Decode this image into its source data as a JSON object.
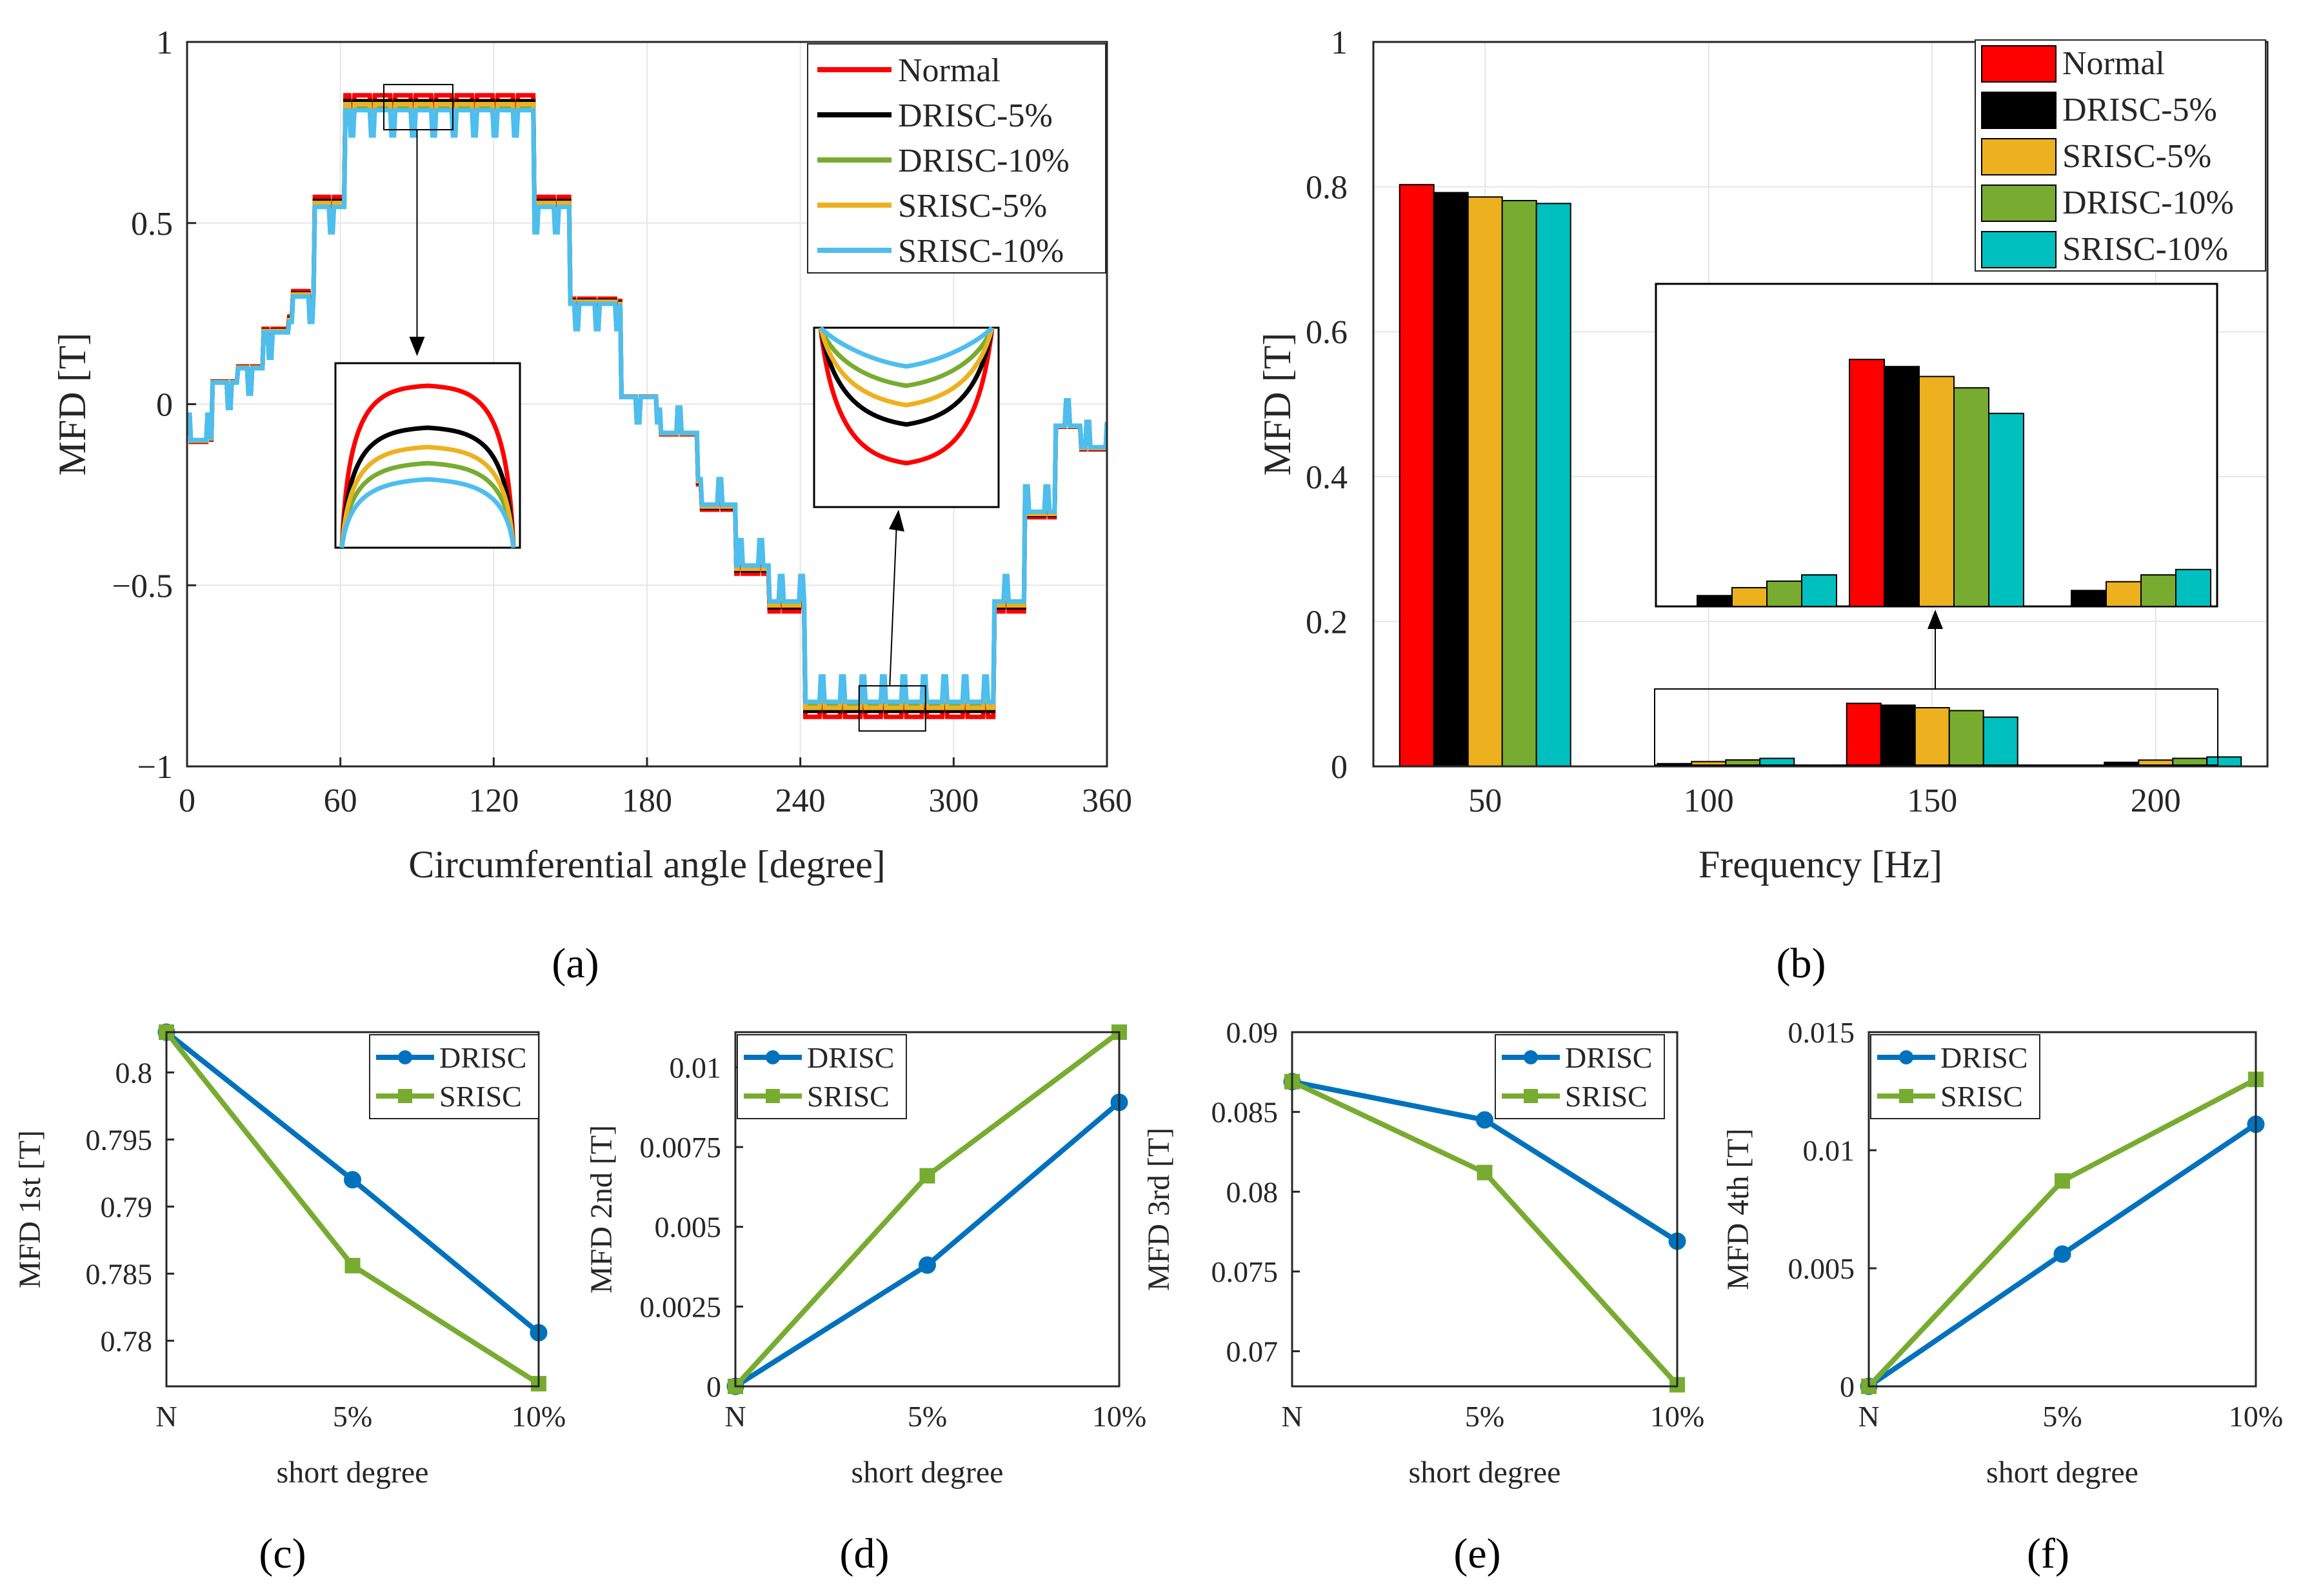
{
  "chart_data": [
    {
      "id": "a",
      "type": "line",
      "panel_label": "(a)",
      "xlabel": "Circumferential angle [degree]",
      "ylabel": "MFD [T]",
      "xlim": [
        0,
        360
      ],
      "ylim": [
        -1,
        1
      ],
      "xticks": [
        "0",
        "60",
        "120",
        "180",
        "240",
        "300",
        "360"
      ],
      "yticks": [
        "1",
        "0.5",
        "0",
        "−0.5",
        "−1"
      ],
      "grid": true,
      "legend_position": "top-right",
      "series": [
        {
          "name": "Normal",
          "color": "#ff0000",
          "scale": 1.04
        },
        {
          "name": "DRISC-5%",
          "color": "#000000",
          "scale": 1.02
        },
        {
          "name": "DRISC-10%",
          "color": "#77ac30",
          "scale": 1.0
        },
        {
          "name": "SRISC-5%",
          "color": "#edb120",
          "scale": 1.01
        },
        {
          "name": "SRISC-10%",
          "color": "#4dbeee",
          "scale": 0.99
        }
      ],
      "waveform": {
        "step_angles": [
          0,
          10,
          20,
          30,
          40,
          50,
          62,
          136,
          150,
          170,
          185,
          200,
          215,
          228,
          242,
          316,
          328,
          340,
          350,
          360
        ],
        "step_values": [
          -0.1,
          0.06,
          0.1,
          0.2,
          0.3,
          0.55,
          0.82,
          0.55,
          0.28,
          0.02,
          -0.08,
          -0.28,
          -0.45,
          -0.55,
          -0.83,
          -0.55,
          -0.3,
          -0.06,
          -0.12
        ]
      }
    },
    {
      "id": "b",
      "type": "bar",
      "panel_label": "(b)",
      "xlabel": "Frequency [Hz]",
      "ylabel": "MFD [T]",
      "ylim": [
        0,
        1
      ],
      "yticks": [
        "0",
        "0.2",
        "0.4",
        "0.6",
        "0.8",
        "1"
      ],
      "categories": [
        "50",
        "100",
        "150",
        "200"
      ],
      "grid": true,
      "legend_position": "top-right",
      "series": [
        {
          "name": "Normal",
          "color": "#ff0000",
          "values": [
            0.803,
            0.0,
            0.087,
            0.0
          ]
        },
        {
          "name": "DRISC-5%",
          "color": "#000000",
          "values": [
            0.792,
            0.0038,
            0.0845,
            0.0056
          ]
        },
        {
          "name": "SRISC-5%",
          "color": "#edb120",
          "values": [
            0.786,
            0.0066,
            0.081,
            0.0087
          ]
        },
        {
          "name": "DRISC-10%",
          "color": "#77ac30",
          "values": [
            0.781,
            0.0089,
            0.077,
            0.0111
          ]
        },
        {
          "name": "SRISC-10%",
          "color": "#00bfbf",
          "values": [
            0.777,
            0.0111,
            0.068,
            0.013
          ]
        }
      ]
    },
    {
      "id": "c",
      "type": "line",
      "panel_label": "(c)",
      "xlabel": "short degree",
      "ylabel": "MFD 1st [T]",
      "categories": [
        "N",
        "5%",
        "10%"
      ],
      "ylim": [
        0.7766,
        0.803
      ],
      "yticks": [
        "0.8",
        "0.795",
        "0.79",
        "0.785",
        "0.78"
      ],
      "ytick_values": [
        0.8,
        0.795,
        0.79,
        0.785,
        0.78
      ],
      "legend_position": "top-right",
      "series": [
        {
          "name": "DRISC",
          "color": "#0072bd",
          "marker": "circle",
          "values": [
            0.803,
            0.792,
            0.7806
          ]
        },
        {
          "name": "SRISC",
          "color": "#77ac30",
          "marker": "square",
          "values": [
            0.803,
            0.7856,
            0.7768
          ]
        }
      ]
    },
    {
      "id": "d",
      "type": "line",
      "panel_label": "(d)",
      "xlabel": "short degree",
      "ylabel": "MFD 2nd [T]",
      "categories": [
        "N",
        "5%",
        "10%"
      ],
      "ylim": [
        0,
        0.0111
      ],
      "yticks": [
        "0.01",
        "0.0075",
        "0.005",
        "0.0025",
        "0"
      ],
      "ytick_values": [
        0.01,
        0.0075,
        0.005,
        0.0025,
        0
      ],
      "legend_position": "top-left",
      "series": [
        {
          "name": "DRISC",
          "color": "#0072bd",
          "marker": "circle",
          "values": [
            0,
            0.0038,
            0.0089
          ]
        },
        {
          "name": "SRISC",
          "color": "#77ac30",
          "marker": "square",
          "values": [
            0,
            0.0066,
            0.0111
          ]
        }
      ]
    },
    {
      "id": "e",
      "type": "line",
      "panel_label": "(e)",
      "xlabel": "short degree",
      "ylabel": "MFD 3rd [T]",
      "categories": [
        "N",
        "5%",
        "10%"
      ],
      "ylim": [
        0.0678,
        0.09
      ],
      "yticks": [
        "0.09",
        "0.085",
        "0.08",
        "0.075",
        "0.07"
      ],
      "ytick_values": [
        0.09,
        0.085,
        0.08,
        0.075,
        0.07
      ],
      "legend_position": "top-right",
      "series": [
        {
          "name": "DRISC",
          "color": "#0072bd",
          "marker": "circle",
          "values": [
            0.0869,
            0.0845,
            0.0769
          ]
        },
        {
          "name": "SRISC",
          "color": "#77ac30",
          "marker": "square",
          "values": [
            0.0869,
            0.0812,
            0.0679
          ]
        }
      ]
    },
    {
      "id": "f",
      "type": "line",
      "panel_label": "(f)",
      "xlabel": "short degree",
      "ylabel": "MFD 4th [T]",
      "categories": [
        "N",
        "5%",
        "10%"
      ],
      "ylim": [
        0,
        0.015
      ],
      "yticks": [
        "0.015",
        "0.01",
        "0.005",
        "0"
      ],
      "ytick_values": [
        0.015,
        0.01,
        0.005,
        0
      ],
      "legend_position": "top-left",
      "series": [
        {
          "name": "DRISC",
          "color": "#0072bd",
          "marker": "circle",
          "values": [
            0,
            0.0056,
            0.0111
          ]
        },
        {
          "name": "SRISC",
          "color": "#77ac30",
          "marker": "square",
          "values": [
            0,
            0.0087,
            0.013
          ]
        }
      ]
    }
  ]
}
